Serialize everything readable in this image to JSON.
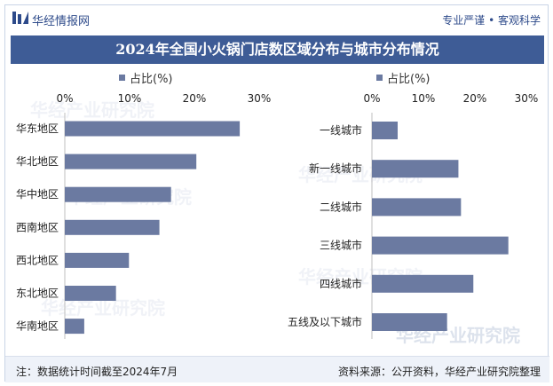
{
  "header": {
    "logo_text": "华经情报网",
    "slogan": "专业严谨 • 客观科学"
  },
  "title": "2024年全国小火锅门店数区域分布与城市分布情况",
  "watermark": "华经产业研究院",
  "footer": {
    "note": "注：数据统计时间截至2024年7月",
    "source": "资料来源：公开资料，华经产业研究院整理"
  },
  "colors": {
    "bar": "#6b7aa1",
    "title_bg": "#3e5c96",
    "brand": "#2d4a8a"
  },
  "chart_data": [
    {
      "type": "bar",
      "orientation": "horizontal",
      "legend": "占比(%)",
      "xticks": [
        "0%",
        "10%",
        "20%",
        "30%"
      ],
      "xlim": [
        0,
        30
      ],
      "categories": [
        "华东地区",
        "华北地区",
        "华中地区",
        "西南地区",
        "西北地区",
        "东北地区",
        "华南地区"
      ],
      "series": [
        {
          "name": "占比(%)",
          "values": [
            27,
            20.3,
            16.4,
            14.6,
            9.9,
            7.9,
            3
          ]
        }
      ]
    },
    {
      "type": "bar",
      "orientation": "horizontal",
      "legend": "占比(%)",
      "xticks": [
        "0%",
        "10%",
        "20%",
        "30%"
      ],
      "xlim": [
        0,
        30
      ],
      "categories": [
        "一线城市",
        "新一线城市",
        "二线城市",
        "三线城市",
        "四线城市",
        "五线及以下城市"
      ],
      "series": [
        {
          "name": "占比(%)",
          "values": [
            5,
            16.8,
            17.3,
            26.5,
            19.7,
            14.6
          ]
        }
      ]
    }
  ]
}
